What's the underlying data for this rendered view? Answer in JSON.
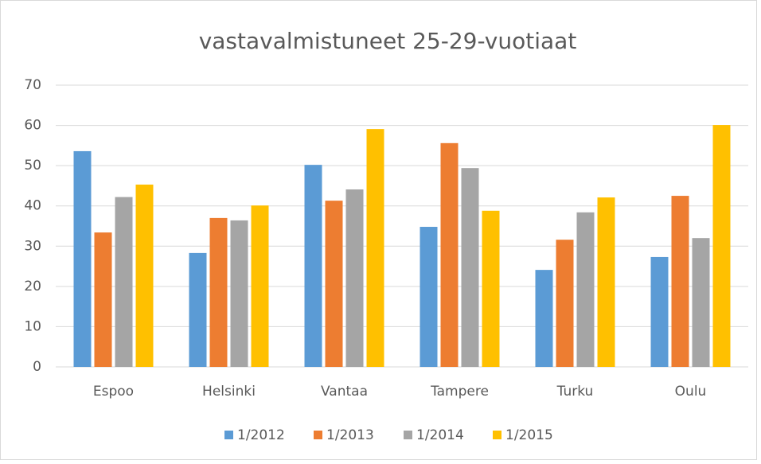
{
  "chart_data": {
    "type": "bar",
    "title": "vastavalmistuneet 25-29-vuotiaat",
    "categories": [
      "Espoo",
      "Helsinki",
      "Vantaa",
      "Tampere",
      "Turku",
      "Oulu"
    ],
    "series": [
      {
        "name": "1/2012",
        "color": "#5b9bd5",
        "values": [
          53.6,
          28.3,
          50.2,
          34.8,
          24.1,
          27.3
        ]
      },
      {
        "name": "1/2013",
        "color": "#ed7d31",
        "values": [
          33.4,
          37.0,
          41.3,
          55.6,
          31.6,
          42.5
        ]
      },
      {
        "name": "1/2014",
        "color": "#a5a5a5",
        "values": [
          42.2,
          36.4,
          44.1,
          49.4,
          38.4,
          32.0
        ]
      },
      {
        "name": "1/2015",
        "color": "#ffc000",
        "values": [
          45.3,
          40.1,
          59.1,
          38.8,
          42.1,
          60.1
        ]
      }
    ],
    "ylim": [
      0,
      70
    ],
    "yticks": [
      0,
      10,
      20,
      30,
      40,
      50,
      60,
      70
    ],
    "grid": true,
    "legend": "bottom"
  }
}
